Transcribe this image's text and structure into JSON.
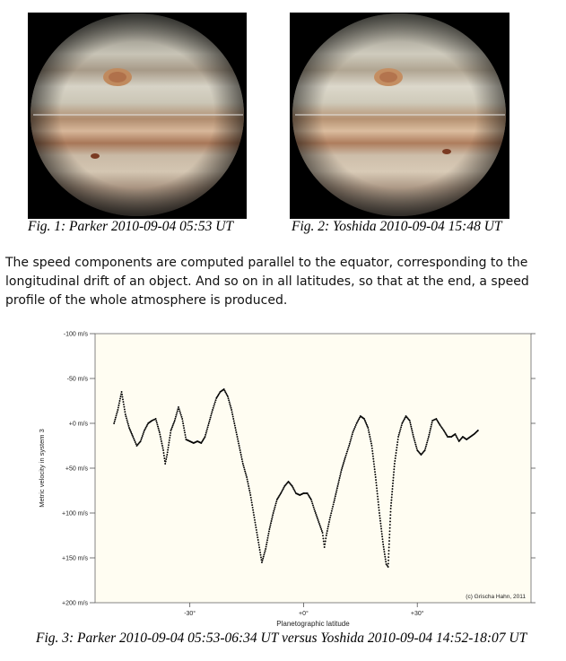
{
  "figures": [
    {
      "caption": "Fig. 1: Parker 2010-09-04 05:53 UT"
    },
    {
      "caption": "Fig. 2: Yoshida 2010-09-04 15:48 UT"
    }
  ],
  "paragraph": "The speed components are computed parallel to the equator, corresponding to the longitudinal drift of an object. And so on in all latitudes, so that at the end, a speed profile of the whole atmosphere is produced.",
  "chart_caption": "Fig. 3: Parker 2010-09-04 05:53-06:34 UT versus Yoshida 2010-09-04 14:52-18:07 UT",
  "chart_data": {
    "type": "scatter",
    "title": "",
    "xlabel": "Planetographic latitude",
    "ylabel": "Metric velocity in system 3",
    "credit": "(c) Grischa Hahn, 2011",
    "xlim": [
      -55,
      60
    ],
    "ylim": [
      -100,
      200
    ],
    "y_inverted": true,
    "x_ticks": [
      {
        "v": -30,
        "label": "-30°"
      },
      {
        "v": 0,
        "label": "+0°"
      },
      {
        "v": 30,
        "label": "+30°"
      }
    ],
    "y_ticks": [
      {
        "v": -100,
        "label": "-100 m/s"
      },
      {
        "v": -50,
        "label": "-50 m/s"
      },
      {
        "v": 0,
        "label": "+0 m/s"
      },
      {
        "v": 50,
        "label": "+50 m/s"
      },
      {
        "v": 100,
        "label": "+100 m/s"
      },
      {
        "v": 150,
        "label": "+150 m/s"
      },
      {
        "v": 200,
        "label": "+200 m/s"
      }
    ],
    "grid": false,
    "profile": [
      [
        -50,
        0
      ],
      [
        -49,
        -15
      ],
      [
        -48,
        -35
      ],
      [
        -47,
        -10
      ],
      [
        -46,
        5
      ],
      [
        -45,
        15
      ],
      [
        -44,
        25
      ],
      [
        -43,
        20
      ],
      [
        -42,
        8
      ],
      [
        -41,
        0
      ],
      [
        -40,
        -3
      ],
      [
        -39,
        -5
      ],
      [
        -38,
        10
      ],
      [
        -37,
        30
      ],
      [
        -36.5,
        45
      ],
      [
        -36,
        35
      ],
      [
        -35,
        8
      ],
      [
        -34,
        -3
      ],
      [
        -33,
        -18
      ],
      [
        -32,
        -5
      ],
      [
        -31,
        18
      ],
      [
        -30,
        20
      ],
      [
        -29,
        22
      ],
      [
        -28,
        20
      ],
      [
        -27,
        22
      ],
      [
        -26,
        15
      ],
      [
        -25,
        0
      ],
      [
        -24,
        -15
      ],
      [
        -23,
        -28
      ],
      [
        -22,
        -35
      ],
      [
        -21,
        -38
      ],
      [
        -20,
        -30
      ],
      [
        -19,
        -15
      ],
      [
        -18,
        5
      ],
      [
        -17,
        25
      ],
      [
        -16,
        45
      ],
      [
        -15,
        60
      ],
      [
        -14,
        80
      ],
      [
        -13,
        105
      ],
      [
        -12,
        130
      ],
      [
        -11,
        155
      ],
      [
        -10,
        140
      ],
      [
        -9,
        118
      ],
      [
        -8,
        100
      ],
      [
        -7,
        85
      ],
      [
        -6,
        78
      ],
      [
        -5,
        70
      ],
      [
        -4,
        65
      ],
      [
        -3,
        70
      ],
      [
        -2,
        78
      ],
      [
        -1,
        80
      ],
      [
        0,
        78
      ],
      [
        1,
        78
      ],
      [
        2,
        85
      ],
      [
        3,
        98
      ],
      [
        4,
        110
      ],
      [
        5,
        122
      ],
      [
        5.5,
        138
      ],
      [
        6,
        125
      ],
      [
        7,
        105
      ],
      [
        8,
        88
      ],
      [
        9,
        70
      ],
      [
        10,
        52
      ],
      [
        11,
        38
      ],
      [
        12,
        25
      ],
      [
        13,
        10
      ],
      [
        14,
        0
      ],
      [
        15,
        -8
      ],
      [
        16,
        -5
      ],
      [
        17,
        5
      ],
      [
        18,
        25
      ],
      [
        19,
        60
      ],
      [
        20,
        100
      ],
      [
        21,
        135
      ],
      [
        21.8,
        157
      ],
      [
        22.3,
        160
      ],
      [
        23,
        95
      ],
      [
        24,
        45
      ],
      [
        25,
        15
      ],
      [
        26,
        0
      ],
      [
        27,
        -8
      ],
      [
        28,
        -3
      ],
      [
        29,
        15
      ],
      [
        30,
        30
      ],
      [
        31,
        35
      ],
      [
        32,
        30
      ],
      [
        33,
        15
      ],
      [
        34,
        -3
      ],
      [
        35,
        -5
      ],
      [
        36,
        2
      ],
      [
        37,
        8
      ],
      [
        38,
        15
      ],
      [
        39,
        15
      ],
      [
        40,
        12
      ],
      [
        41,
        20
      ],
      [
        42,
        15
      ],
      [
        43,
        18
      ],
      [
        44,
        15
      ],
      [
        45,
        12
      ],
      [
        46,
        8
      ]
    ]
  }
}
